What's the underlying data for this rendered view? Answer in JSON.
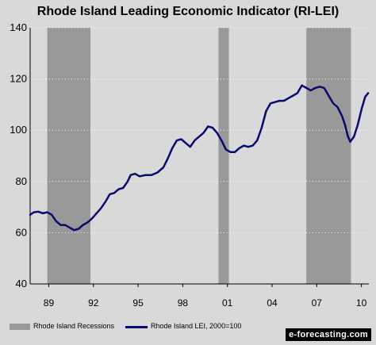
{
  "chart_data": {
    "type": "line",
    "title": "Rhode Island Leading Economic Indicator (RI-LEI)",
    "xlabel": "",
    "ylabel": "",
    "ylim": [
      40,
      140
    ],
    "xlim": [
      1987.75,
      2010.5
    ],
    "yticks": [
      40,
      60,
      80,
      100,
      120,
      140
    ],
    "xtick_labels": [
      "89",
      "92",
      "95",
      "98",
      "01",
      "04",
      "07",
      "10"
    ],
    "xtick_values": [
      1989,
      1992,
      1995,
      1998,
      2001,
      2004,
      2007,
      2010
    ],
    "grid": true,
    "legend_placement": "bottom",
    "recessions": [
      {
        "start": 1988.9,
        "end": 1991.8
      },
      {
        "start": 2000.4,
        "end": 2001.1
      },
      {
        "start": 2006.3,
        "end": 2009.3
      }
    ],
    "series": [
      {
        "name": "Rhode Island LEI, 2000=100",
        "color": "#0a0a6e",
        "points": [
          [
            1987.75,
            67
          ],
          [
            1988.0,
            68
          ],
          [
            1988.3,
            68.2
          ],
          [
            1988.6,
            67.6
          ],
          [
            1988.9,
            68
          ],
          [
            1989.2,
            67
          ],
          [
            1989.5,
            64.5
          ],
          [
            1989.8,
            63
          ],
          [
            1990.1,
            63
          ],
          [
            1990.4,
            62
          ],
          [
            1990.7,
            61
          ],
          [
            1991.0,
            61.5
          ],
          [
            1991.3,
            63
          ],
          [
            1991.6,
            64
          ],
          [
            1991.9,
            65.5
          ],
          [
            1992.2,
            67.5
          ],
          [
            1992.5,
            69.5
          ],
          [
            1992.8,
            72
          ],
          [
            1993.1,
            75
          ],
          [
            1993.4,
            75.5
          ],
          [
            1993.7,
            77
          ],
          [
            1994.0,
            77.5
          ],
          [
            1994.3,
            80
          ],
          [
            1994.5,
            82.5
          ],
          [
            1994.8,
            83
          ],
          [
            1995.1,
            82
          ],
          [
            1995.5,
            82.5
          ],
          [
            1995.9,
            82.5
          ],
          [
            1996.3,
            83.5
          ],
          [
            1996.7,
            85.5
          ],
          [
            1997.0,
            89
          ],
          [
            1997.3,
            93
          ],
          [
            1997.6,
            96
          ],
          [
            1997.9,
            96.5
          ],
          [
            1998.2,
            95
          ],
          [
            1998.5,
            93.5
          ],
          [
            1998.8,
            96
          ],
          [
            1999.1,
            97.5
          ],
          [
            1999.4,
            99
          ],
          [
            1999.7,
            101.5
          ],
          [
            2000.0,
            101
          ],
          [
            2000.3,
            99
          ],
          [
            2000.6,
            96
          ],
          [
            2000.9,
            92.5
          ],
          [
            2001.2,
            91.5
          ],
          [
            2001.5,
            91.5
          ],
          [
            2001.8,
            93
          ],
          [
            2002.1,
            94
          ],
          [
            2002.4,
            93.5
          ],
          [
            2002.7,
            94
          ],
          [
            2003.0,
            96
          ],
          [
            2003.3,
            101
          ],
          [
            2003.6,
            107.5
          ],
          [
            2003.9,
            110.5
          ],
          [
            2004.2,
            111
          ],
          [
            2004.5,
            111.5
          ],
          [
            2004.8,
            111.5
          ],
          [
            2005.1,
            112.5
          ],
          [
            2005.4,
            113.5
          ],
          [
            2005.7,
            114.5
          ],
          [
            2006.0,
            117.5
          ],
          [
            2006.3,
            116.5
          ],
          [
            2006.6,
            115.5
          ],
          [
            2006.9,
            116.5
          ],
          [
            2007.2,
            117
          ],
          [
            2007.5,
            116.5
          ],
          [
            2007.8,
            113.5
          ],
          [
            2008.1,
            110.5
          ],
          [
            2008.4,
            109
          ],
          [
            2008.7,
            105.5
          ],
          [
            2008.9,
            102
          ],
          [
            2009.1,
            97.5
          ],
          [
            2009.25,
            95.5
          ],
          [
            2009.5,
            97.5
          ],
          [
            2009.75,
            102
          ],
          [
            2010.0,
            108
          ],
          [
            2010.25,
            113
          ],
          [
            2010.45,
            114.5
          ]
        ]
      }
    ],
    "legend": [
      {
        "label": "Rhode Island Recessions",
        "swatch": "rect",
        "color": "#999999"
      },
      {
        "label": "Rhode Island LEI, 2000=100",
        "swatch": "line",
        "color": "#0a0a6e"
      }
    ]
  },
  "footer": {
    "source_badge": "e-forecasting.com"
  }
}
